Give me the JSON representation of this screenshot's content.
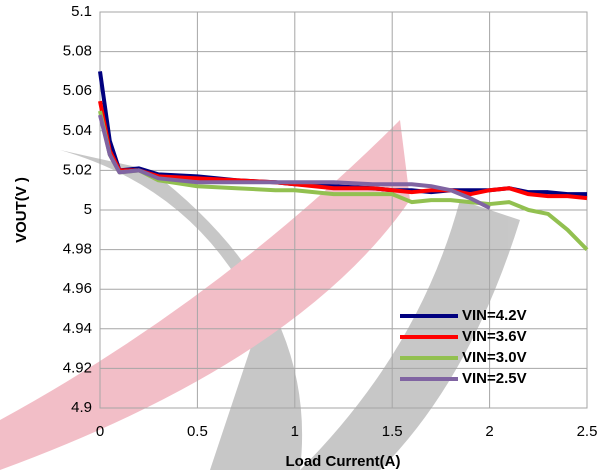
{
  "chart_data": {
    "type": "line",
    "xlabel": "Load Current(A)",
    "ylabel": "VOUT(V )",
    "x": [
      0,
      0.05,
      0.1,
      0.2,
      0.3,
      0.5,
      0.7,
      0.9,
      1.0,
      1.2,
      1.4,
      1.5,
      1.6,
      1.7,
      1.8,
      1.9,
      2.0,
      2.1,
      2.2,
      2.3,
      2.4,
      2.5
    ],
    "series": [
      {
        "name": "VIN=4.2V",
        "color": "#00007f",
        "values": [
          5.07,
          5.035,
          5.02,
          5.021,
          5.018,
          5.017,
          5.015,
          5.014,
          5.013,
          5.012,
          5.011,
          5.01,
          5.01,
          5.009,
          5.01,
          5.01,
          5.01,
          5.011,
          5.009,
          5.009,
          5.008,
          5.008
        ]
      },
      {
        "name": "VIN=3.6V",
        "color": "#ff0000",
        "values": [
          5.055,
          5.03,
          5.02,
          5.02,
          5.017,
          5.016,
          5.015,
          5.014,
          5.013,
          5.011,
          5.011,
          5.01,
          5.009,
          5.01,
          5.01,
          5.008,
          5.01,
          5.011,
          5.008,
          5.007,
          5.007,
          5.006
        ]
      },
      {
        "name": "VIN=3.0V",
        "color": "#92c050",
        "values": [
          5.05,
          5.028,
          5.019,
          5.02,
          5.015,
          5.012,
          5.011,
          5.01,
          5.01,
          5.008,
          5.008,
          5.008,
          5.004,
          5.005,
          5.005,
          5.004,
          5.003,
          5.004,
          5.0,
          4.998,
          4.99,
          4.98
        ]
      },
      {
        "name": "VIN=2.5V",
        "color": "#8064a2",
        "values": [
          5.048,
          5.028,
          5.019,
          5.02,
          5.016,
          5.014,
          5.014,
          5.014,
          5.014,
          5.014,
          5.013,
          5.013,
          5.013,
          5.012,
          5.01,
          5.006,
          5.001,
          null,
          null,
          null,
          null,
          null
        ]
      }
    ],
    "xlim": [
      0,
      2.5
    ],
    "xticks": [
      0,
      0.5,
      1,
      1.5,
      2,
      2.5
    ],
    "ylim": [
      4.9,
      5.1
    ],
    "yticks": [
      4.9,
      4.92,
      4.94,
      4.96,
      4.98,
      5,
      5.02,
      5.04,
      5.06,
      5.08,
      5.1
    ],
    "grid": true,
    "legend": "lower right"
  }
}
